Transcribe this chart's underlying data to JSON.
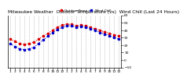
{
  "title": "Milwaukee Weather  Outdoor Temperature (vs)  Wind Chill (Last 24 Hours)",
  "x_labels": [
    "1",
    "2",
    "3",
    "4",
    "5",
    "6",
    "7",
    "8",
    "9",
    "10",
    "11",
    "12",
    "1",
    "2",
    "3",
    "4",
    "5",
    "6",
    "7",
    "8",
    "9",
    "10",
    "11",
    "12"
  ],
  "outdoor_temp": [
    28,
    25,
    22,
    21,
    22,
    24,
    28,
    32,
    36,
    40,
    44,
    47,
    48,
    48,
    46,
    47,
    46,
    44,
    42,
    40,
    38,
    36,
    34,
    32
  ],
  "wind_chill": [
    22,
    18,
    15,
    14,
    15,
    17,
    22,
    27,
    32,
    37,
    41,
    44,
    46,
    46,
    44,
    45,
    44,
    42,
    40,
    37,
    35,
    33,
    30,
    28
  ],
  "temp_color": "#dd0000",
  "wind_color": "#0000cc",
  "bg_color": "#ffffff",
  "grid_color": "#aaaaaa",
  "ylim": [
    -10,
    60
  ],
  "yticks": [
    -10,
    0,
    10,
    20,
    30,
    40,
    50,
    60
  ],
  "title_fontsize": 4.2,
  "tick_fontsize": 3.2,
  "line_width": 0.8,
  "marker_size": 1.8
}
